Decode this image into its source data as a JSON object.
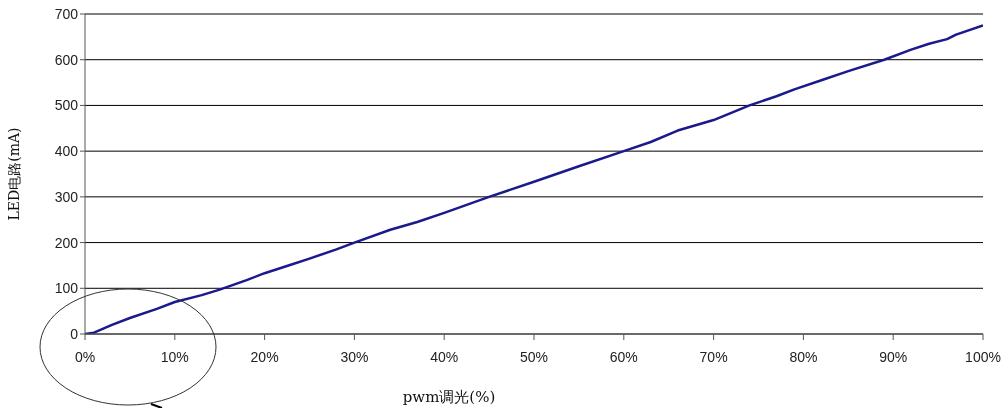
{
  "chart_data": {
    "type": "line",
    "xlabel": "pwm调光(%)",
    "ylabel": "LED电路(mA)",
    "x": [
      0,
      1,
      3,
      5,
      8,
      10,
      13,
      15,
      18,
      20,
      23,
      25,
      28,
      30,
      34,
      37,
      40,
      45,
      50,
      55,
      60,
      63,
      66,
      70,
      74,
      77,
      79,
      82,
      85,
      89,
      92,
      94,
      96,
      97,
      100
    ],
    "series": [
      {
        "color": "#1a1a8c",
        "values": [
          0,
          3,
          20,
          35,
          55,
          70,
          85,
          97,
          118,
          133,
          152,
          165,
          185,
          200,
          228,
          245,
          265,
          300,
          333,
          367,
          400,
          420,
          445,
          468,
          500,
          520,
          535,
          555,
          575,
          600,
          622,
          635,
          645,
          655,
          675
        ]
      }
    ],
    "xlim": [
      0,
      100
    ],
    "xticks": [
      {
        "value": 0,
        "label": "0%"
      },
      {
        "value": 10,
        "label": "10%"
      },
      {
        "value": 20,
        "label": "20%"
      },
      {
        "value": 30,
        "label": "30%"
      },
      {
        "value": 40,
        "label": "40%"
      },
      {
        "value": 50,
        "label": "50%"
      },
      {
        "value": 60,
        "label": "60%"
      },
      {
        "value": 70,
        "label": "70%"
      },
      {
        "value": 80,
        "label": "80%"
      },
      {
        "value": 90,
        "label": "90%"
      },
      {
        "value": 100,
        "label": "100%"
      }
    ],
    "ylim": [
      0,
      700
    ],
    "yticks": [
      0,
      100,
      200,
      300,
      400,
      500,
      600,
      700
    ],
    "grid": "y",
    "marker": "none",
    "line_style": "solid"
  }
}
